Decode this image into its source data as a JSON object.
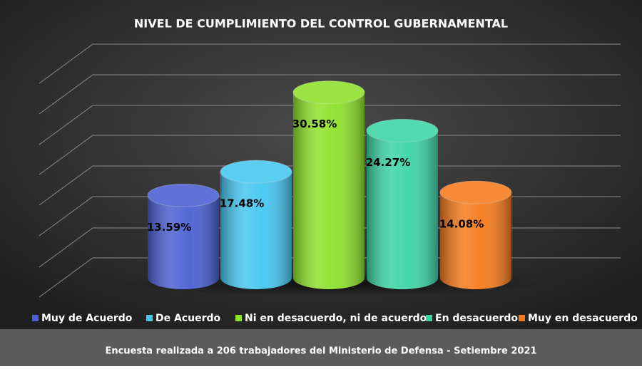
{
  "chart_data": {
    "type": "bar3d",
    "title": "NIVEL DE CUMPLIMIENTO DEL CONTROL GUBERNAMENTAL",
    "categories": [
      "Muy de Acuerdo",
      "De Acuerdo",
      "Ni en desacuerdo, ni de acuerdo",
      "En desacuerdo",
      "Muy en desacuerdo"
    ],
    "values": [
      13.59,
      17.48,
      30.58,
      24.27,
      14.08
    ],
    "value_labels": [
      "13.59%",
      "17.48%",
      "30.58%",
      "24.27%",
      "14.08%"
    ],
    "colors": [
      "#4a5fd2",
      "#45c6f0",
      "#8ee12b",
      "#3cd4a4",
      "#f57a1c"
    ],
    "ylim": [
      0,
      35
    ],
    "legend": "bottom",
    "source": "Encuesta realizada a 206 trabajadores del Ministerio de Defensa - Setiembre 2021"
  }
}
